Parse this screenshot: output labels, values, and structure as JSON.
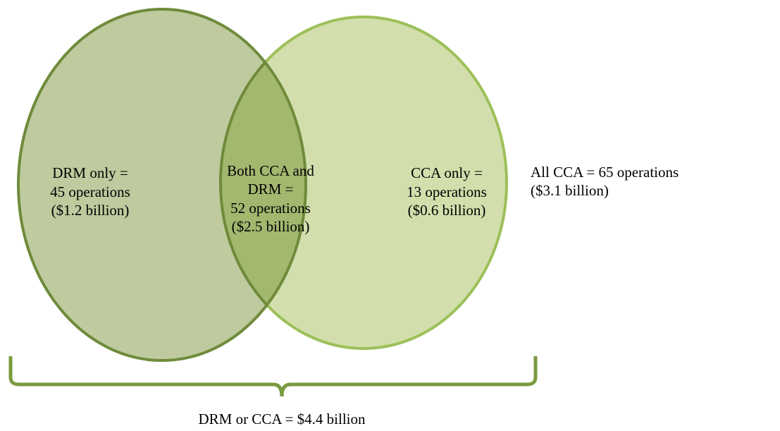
{
  "regions": [
    {
      "lines": [
        "DRM only =",
        "45 operations",
        "($1.2 billion)"
      ]
    },
    {
      "lines": [
        "Both CCA and",
        "DRM =",
        "52 operations",
        "($2.5 billion)"
      ]
    },
    {
      "lines": [
        "CCA only =",
        "13 operations",
        "($0.6 billion)"
      ]
    }
  ],
  "annotation": {
    "lines": [
      "All CCA = 65 operations",
      "($3.1 billion)"
    ]
  },
  "footer": "DRM or CCA = $4.4 billion"
}
